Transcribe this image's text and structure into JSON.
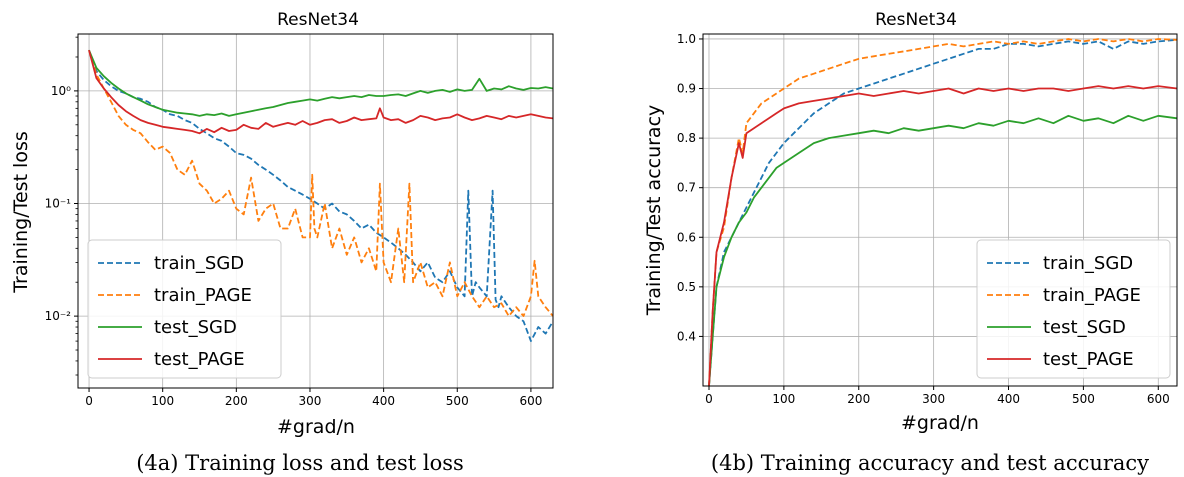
{
  "colors": {
    "train_SGD": "#1f77b4",
    "train_PAGE": "#ff7f0e",
    "test_SGD": "#2ca02c",
    "test_PAGE": "#d62728"
  },
  "chart_data": [
    {
      "type": "line",
      "title": "ResNet34",
      "xlabel": "#grad/n",
      "ylabel": "Training/Test loss",
      "caption": "(4a) Training loss and test loss",
      "yscale": "log",
      "xlim": [
        -15,
        630
      ],
      "ylim": [
        0.0023,
        3.2
      ],
      "xticks": [
        0,
        100,
        200,
        300,
        400,
        500,
        600
      ],
      "xtick_labels": [
        "0",
        "100",
        "200",
        "300",
        "400",
        "500",
        "600"
      ],
      "yticks": [
        0.01,
        0.1,
        1
      ],
      "ytick_labels": [
        "10⁻²",
        "10⁻¹",
        "10⁰"
      ],
      "grid": true,
      "legend_position": "lower-left",
      "series": [
        {
          "name": "train_SGD",
          "style": "dashed",
          "x": [
            0,
            10,
            20,
            30,
            40,
            50,
            60,
            70,
            80,
            90,
            100,
            110,
            120,
            130,
            140,
            150,
            160,
            170,
            180,
            190,
            200,
            210,
            220,
            230,
            240,
            250,
            260,
            270,
            280,
            290,
            300,
            310,
            320,
            330,
            340,
            350,
            360,
            370,
            380,
            390,
            400,
            410,
            420,
            430,
            440,
            450,
            460,
            470,
            480,
            490,
            500,
            510,
            515,
            520,
            525,
            530,
            540,
            548,
            552,
            556,
            560,
            570,
            580,
            590,
            600,
            610,
            620,
            630
          ],
          "y": [
            2.3,
            1.5,
            1.25,
            1.1,
            1.0,
            0.95,
            0.88,
            0.85,
            0.8,
            0.72,
            0.68,
            0.62,
            0.6,
            0.55,
            0.52,
            0.46,
            0.42,
            0.38,
            0.36,
            0.32,
            0.28,
            0.27,
            0.25,
            0.22,
            0.2,
            0.18,
            0.16,
            0.14,
            0.13,
            0.12,
            0.11,
            0.1,
            0.09,
            0.1,
            0.085,
            0.08,
            0.07,
            0.06,
            0.065,
            0.055,
            0.05,
            0.045,
            0.04,
            0.035,
            0.03,
            0.025,
            0.03,
            0.022,
            0.02,
            0.025,
            0.018,
            0.015,
            0.13,
            0.015,
            0.02,
            0.018,
            0.015,
            0.13,
            0.014,
            0.012,
            0.015,
            0.012,
            0.01,
            0.009,
            0.006,
            0.008,
            0.007,
            0.009
          ]
        },
        {
          "name": "train_PAGE",
          "style": "dashed",
          "x": [
            0,
            10,
            20,
            30,
            40,
            50,
            60,
            70,
            80,
            90,
            100,
            110,
            120,
            130,
            140,
            150,
            160,
            170,
            180,
            190,
            200,
            210,
            220,
            230,
            240,
            250,
            260,
            270,
            280,
            290,
            300,
            303,
            306,
            310,
            320,
            330,
            340,
            350,
            360,
            370,
            380,
            390,
            395,
            400,
            410,
            420,
            428,
            435,
            440,
            450,
            460,
            470,
            480,
            490,
            500,
            510,
            520,
            530,
            540,
            550,
            560,
            570,
            580,
            590,
            600,
            605,
            610,
            620,
            630
          ],
          "y": [
            2.3,
            1.4,
            1.05,
            0.8,
            0.6,
            0.5,
            0.45,
            0.42,
            0.35,
            0.3,
            0.32,
            0.28,
            0.2,
            0.18,
            0.24,
            0.15,
            0.13,
            0.1,
            0.11,
            0.13,
            0.09,
            0.08,
            0.17,
            0.07,
            0.09,
            0.1,
            0.06,
            0.06,
            0.09,
            0.05,
            0.05,
            0.18,
            0.06,
            0.05,
            0.1,
            0.04,
            0.06,
            0.035,
            0.05,
            0.03,
            0.04,
            0.025,
            0.15,
            0.03,
            0.02,
            0.06,
            0.02,
            0.15,
            0.02,
            0.03,
            0.018,
            0.02,
            0.015,
            0.03,
            0.015,
            0.02,
            0.015,
            0.012,
            0.015,
            0.012,
            0.013,
            0.01,
            0.012,
            0.01,
            0.015,
            0.031,
            0.015,
            0.012,
            0.01
          ]
        },
        {
          "name": "test_SGD",
          "style": "solid",
          "x": [
            0,
            10,
            20,
            30,
            40,
            50,
            60,
            70,
            80,
            90,
            100,
            110,
            120,
            130,
            140,
            150,
            160,
            170,
            180,
            190,
            200,
            210,
            220,
            230,
            240,
            250,
            260,
            270,
            280,
            290,
            300,
            310,
            320,
            330,
            340,
            350,
            360,
            370,
            380,
            390,
            400,
            410,
            420,
            430,
            440,
            450,
            460,
            470,
            480,
            490,
            500,
            510,
            520,
            530,
            540,
            550,
            560,
            570,
            580,
            590,
            600,
            610,
            620,
            630
          ],
          "y": [
            2.3,
            1.6,
            1.35,
            1.18,
            1.05,
            0.95,
            0.88,
            0.82,
            0.76,
            0.72,
            0.68,
            0.66,
            0.64,
            0.63,
            0.62,
            0.6,
            0.62,
            0.61,
            0.63,
            0.6,
            0.62,
            0.64,
            0.66,
            0.68,
            0.7,
            0.72,
            0.75,
            0.78,
            0.8,
            0.82,
            0.84,
            0.82,
            0.85,
            0.88,
            0.86,
            0.88,
            0.9,
            0.88,
            0.92,
            0.9,
            0.9,
            0.92,
            0.93,
            0.9,
            0.95,
            1.0,
            0.96,
            1.0,
            1.02,
            0.98,
            1.03,
            1.0,
            1.02,
            1.28,
            1.0,
            1.05,
            1.03,
            1.1,
            1.05,
            1.02,
            1.06,
            1.05,
            1.08,
            1.05
          ]
        },
        {
          "name": "test_PAGE",
          "style": "solid",
          "x": [
            0,
            10,
            20,
            30,
            40,
            50,
            60,
            70,
            80,
            90,
            100,
            110,
            120,
            130,
            140,
            150,
            160,
            170,
            180,
            190,
            200,
            210,
            220,
            230,
            240,
            250,
            260,
            270,
            280,
            290,
            300,
            310,
            320,
            330,
            340,
            350,
            360,
            370,
            380,
            390,
            395,
            400,
            410,
            420,
            430,
            440,
            450,
            460,
            470,
            480,
            490,
            500,
            510,
            520,
            530,
            540,
            550,
            560,
            570,
            580,
            590,
            600,
            610,
            620,
            630
          ],
          "y": [
            2.3,
            1.3,
            1.05,
            0.88,
            0.75,
            0.66,
            0.6,
            0.55,
            0.52,
            0.5,
            0.48,
            0.47,
            0.46,
            0.45,
            0.44,
            0.42,
            0.46,
            0.43,
            0.47,
            0.44,
            0.45,
            0.5,
            0.47,
            0.46,
            0.52,
            0.48,
            0.5,
            0.52,
            0.5,
            0.54,
            0.5,
            0.52,
            0.55,
            0.56,
            0.52,
            0.54,
            0.58,
            0.55,
            0.56,
            0.57,
            0.7,
            0.58,
            0.55,
            0.56,
            0.52,
            0.55,
            0.6,
            0.58,
            0.55,
            0.57,
            0.58,
            0.62,
            0.58,
            0.55,
            0.57,
            0.6,
            0.58,
            0.56,
            0.6,
            0.58,
            0.6,
            0.62,
            0.6,
            0.58,
            0.57
          ]
        }
      ]
    },
    {
      "type": "line",
      "title": "ResNet34",
      "xlabel": "#grad/n",
      "ylabel": "Training/Test accuracy",
      "caption": "(4b) Training accuracy and test accuracy",
      "yscale": "linear",
      "xlim": [
        -8,
        625
      ],
      "ylim": [
        0.3,
        1.01
      ],
      "xticks": [
        0,
        100,
        200,
        300,
        400,
        500,
        600
      ],
      "xtick_labels": [
        "0",
        "100",
        "200",
        "300",
        "400",
        "500",
        "600"
      ],
      "yticks": [
        0.4,
        0.5,
        0.6,
        0.7,
        0.8,
        0.9,
        1.0
      ],
      "ytick_labels": [
        "0.4",
        "0.5",
        "0.6",
        "0.7",
        "0.8",
        "0.9",
        "1.0"
      ],
      "grid": true,
      "legend_position": "lower-right",
      "series": [
        {
          "name": "train_SGD",
          "style": "dashed",
          "x": [
            0,
            5,
            10,
            20,
            30,
            40,
            50,
            60,
            70,
            80,
            90,
            100,
            120,
            140,
            160,
            180,
            200,
            220,
            240,
            260,
            280,
            300,
            320,
            340,
            360,
            380,
            400,
            420,
            440,
            460,
            480,
            500,
            520,
            540,
            560,
            580,
            600,
            625
          ],
          "y": [
            0.3,
            0.4,
            0.5,
            0.57,
            0.6,
            0.63,
            0.66,
            0.69,
            0.72,
            0.75,
            0.77,
            0.79,
            0.82,
            0.85,
            0.87,
            0.89,
            0.9,
            0.91,
            0.92,
            0.93,
            0.94,
            0.95,
            0.96,
            0.97,
            0.98,
            0.98,
            0.99,
            0.99,
            0.985,
            0.99,
            0.995,
            0.99,
            0.995,
            0.98,
            0.995,
            0.99,
            0.995,
            0.998
          ]
        },
        {
          "name": "train_PAGE",
          "style": "dashed",
          "x": [
            0,
            5,
            10,
            20,
            30,
            40,
            45,
            50,
            60,
            70,
            80,
            90,
            100,
            120,
            140,
            160,
            180,
            200,
            220,
            240,
            260,
            280,
            300,
            320,
            340,
            360,
            380,
            400,
            420,
            440,
            460,
            480,
            500,
            520,
            540,
            560,
            580,
            600,
            625
          ],
          "y": [
            0.3,
            0.45,
            0.57,
            0.62,
            0.72,
            0.8,
            0.77,
            0.83,
            0.85,
            0.87,
            0.88,
            0.89,
            0.9,
            0.92,
            0.93,
            0.94,
            0.95,
            0.96,
            0.965,
            0.97,
            0.975,
            0.98,
            0.985,
            0.99,
            0.985,
            0.99,
            0.995,
            0.99,
            0.995,
            0.99,
            0.995,
            1.0,
            0.995,
            1.0,
            0.995,
            1.0,
            0.995,
            1.0,
            0.998
          ]
        },
        {
          "name": "test_SGD",
          "style": "solid",
          "x": [
            0,
            5,
            10,
            20,
            30,
            40,
            50,
            60,
            70,
            80,
            90,
            100,
            120,
            140,
            160,
            180,
            200,
            220,
            240,
            260,
            280,
            300,
            320,
            340,
            360,
            380,
            400,
            420,
            440,
            460,
            480,
            500,
            520,
            540,
            560,
            580,
            600,
            625
          ],
          "y": [
            0.3,
            0.4,
            0.5,
            0.56,
            0.6,
            0.63,
            0.65,
            0.68,
            0.7,
            0.72,
            0.74,
            0.75,
            0.77,
            0.79,
            0.8,
            0.805,
            0.81,
            0.815,
            0.81,
            0.82,
            0.815,
            0.82,
            0.825,
            0.82,
            0.83,
            0.825,
            0.835,
            0.83,
            0.84,
            0.83,
            0.845,
            0.835,
            0.84,
            0.83,
            0.845,
            0.835,
            0.845,
            0.84
          ]
        },
        {
          "name": "test_PAGE",
          "style": "solid",
          "x": [
            0,
            5,
            10,
            20,
            30,
            40,
            45,
            50,
            60,
            70,
            80,
            90,
            100,
            120,
            140,
            160,
            180,
            200,
            220,
            240,
            260,
            280,
            300,
            320,
            340,
            360,
            380,
            400,
            420,
            440,
            460,
            480,
            500,
            520,
            540,
            560,
            580,
            600,
            625
          ],
          "y": [
            0.3,
            0.45,
            0.57,
            0.63,
            0.72,
            0.79,
            0.76,
            0.81,
            0.82,
            0.83,
            0.84,
            0.85,
            0.86,
            0.87,
            0.875,
            0.88,
            0.885,
            0.89,
            0.885,
            0.89,
            0.895,
            0.89,
            0.895,
            0.9,
            0.89,
            0.9,
            0.895,
            0.9,
            0.895,
            0.9,
            0.9,
            0.895,
            0.9,
            0.905,
            0.9,
            0.905,
            0.9,
            0.905,
            0.9
          ]
        }
      ]
    }
  ]
}
